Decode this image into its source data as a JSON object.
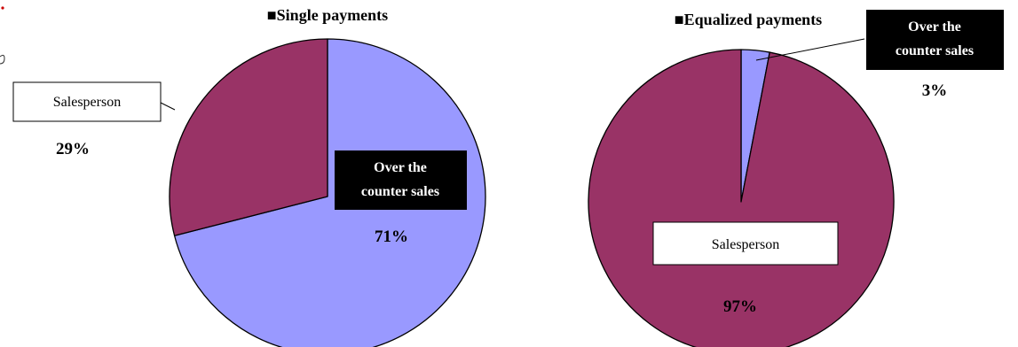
{
  "chart_data": [
    {
      "type": "pie",
      "title": "■Single payments",
      "slices": [
        {
          "name": "Over the counter sales",
          "value": 71,
          "label": "71%",
          "color": "#9999ff",
          "label_line1": "Over the",
          "label_line2": "counter sales"
        },
        {
          "name": "Salesperson",
          "value": 29,
          "label": "29%",
          "color": "#993366",
          "label_line1": "Salesperson"
        }
      ]
    },
    {
      "type": "pie",
      "title": "■Equalized payments",
      "slices": [
        {
          "name": "Over the counter sales",
          "value": 3,
          "label": "3%",
          "color": "#9999ff",
          "label_line1": "Over the",
          "label_line2": "counter sales"
        },
        {
          "name": "Salesperson",
          "value": 97,
          "label": "97%",
          "color": "#993366",
          "label_line1": "Salesperson"
        }
      ]
    }
  ]
}
